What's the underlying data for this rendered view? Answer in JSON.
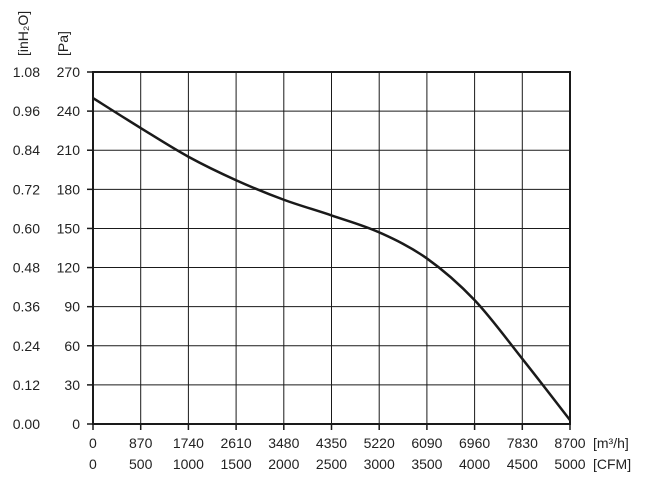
{
  "chart_data": {
    "type": "line",
    "title": "",
    "x_axes": [
      {
        "unit": "[m³/h]",
        "ticks": [
          "0",
          "870",
          "1740",
          "2610",
          "3480",
          "4350",
          "5220",
          "6090",
          "6960",
          "7830",
          "8700"
        ]
      },
      {
        "unit": "[CFM]",
        "ticks": [
          "0",
          "500",
          "1000",
          "1500",
          "2000",
          "2500",
          "3000",
          "3500",
          "4000",
          "4500",
          "5000"
        ]
      }
    ],
    "y_axes": [
      {
        "unit": "[inH₂O]",
        "ticks": [
          "0.00",
          "0.12",
          "0.24",
          "0.36",
          "0.48",
          "0.60",
          "0.72",
          "0.84",
          "0.96",
          "1.08"
        ]
      },
      {
        "unit": "[Pa]",
        "ticks": [
          "0",
          "30",
          "60",
          "90",
          "120",
          "150",
          "180",
          "210",
          "240",
          "270"
        ]
      }
    ],
    "xlim": [
      0,
      8700
    ],
    "ylim": [
      0,
      270
    ],
    "grid": true,
    "series": [
      {
        "color": "#1a1a1a",
        "x": [
          0,
          870,
          1740,
          2610,
          3480,
          4350,
          5220,
          6090,
          6960,
          7830,
          8700
        ],
        "y": [
          250,
          227,
          205,
          187,
          172,
          160,
          147,
          127,
          95,
          50,
          3
        ]
      }
    ]
  }
}
